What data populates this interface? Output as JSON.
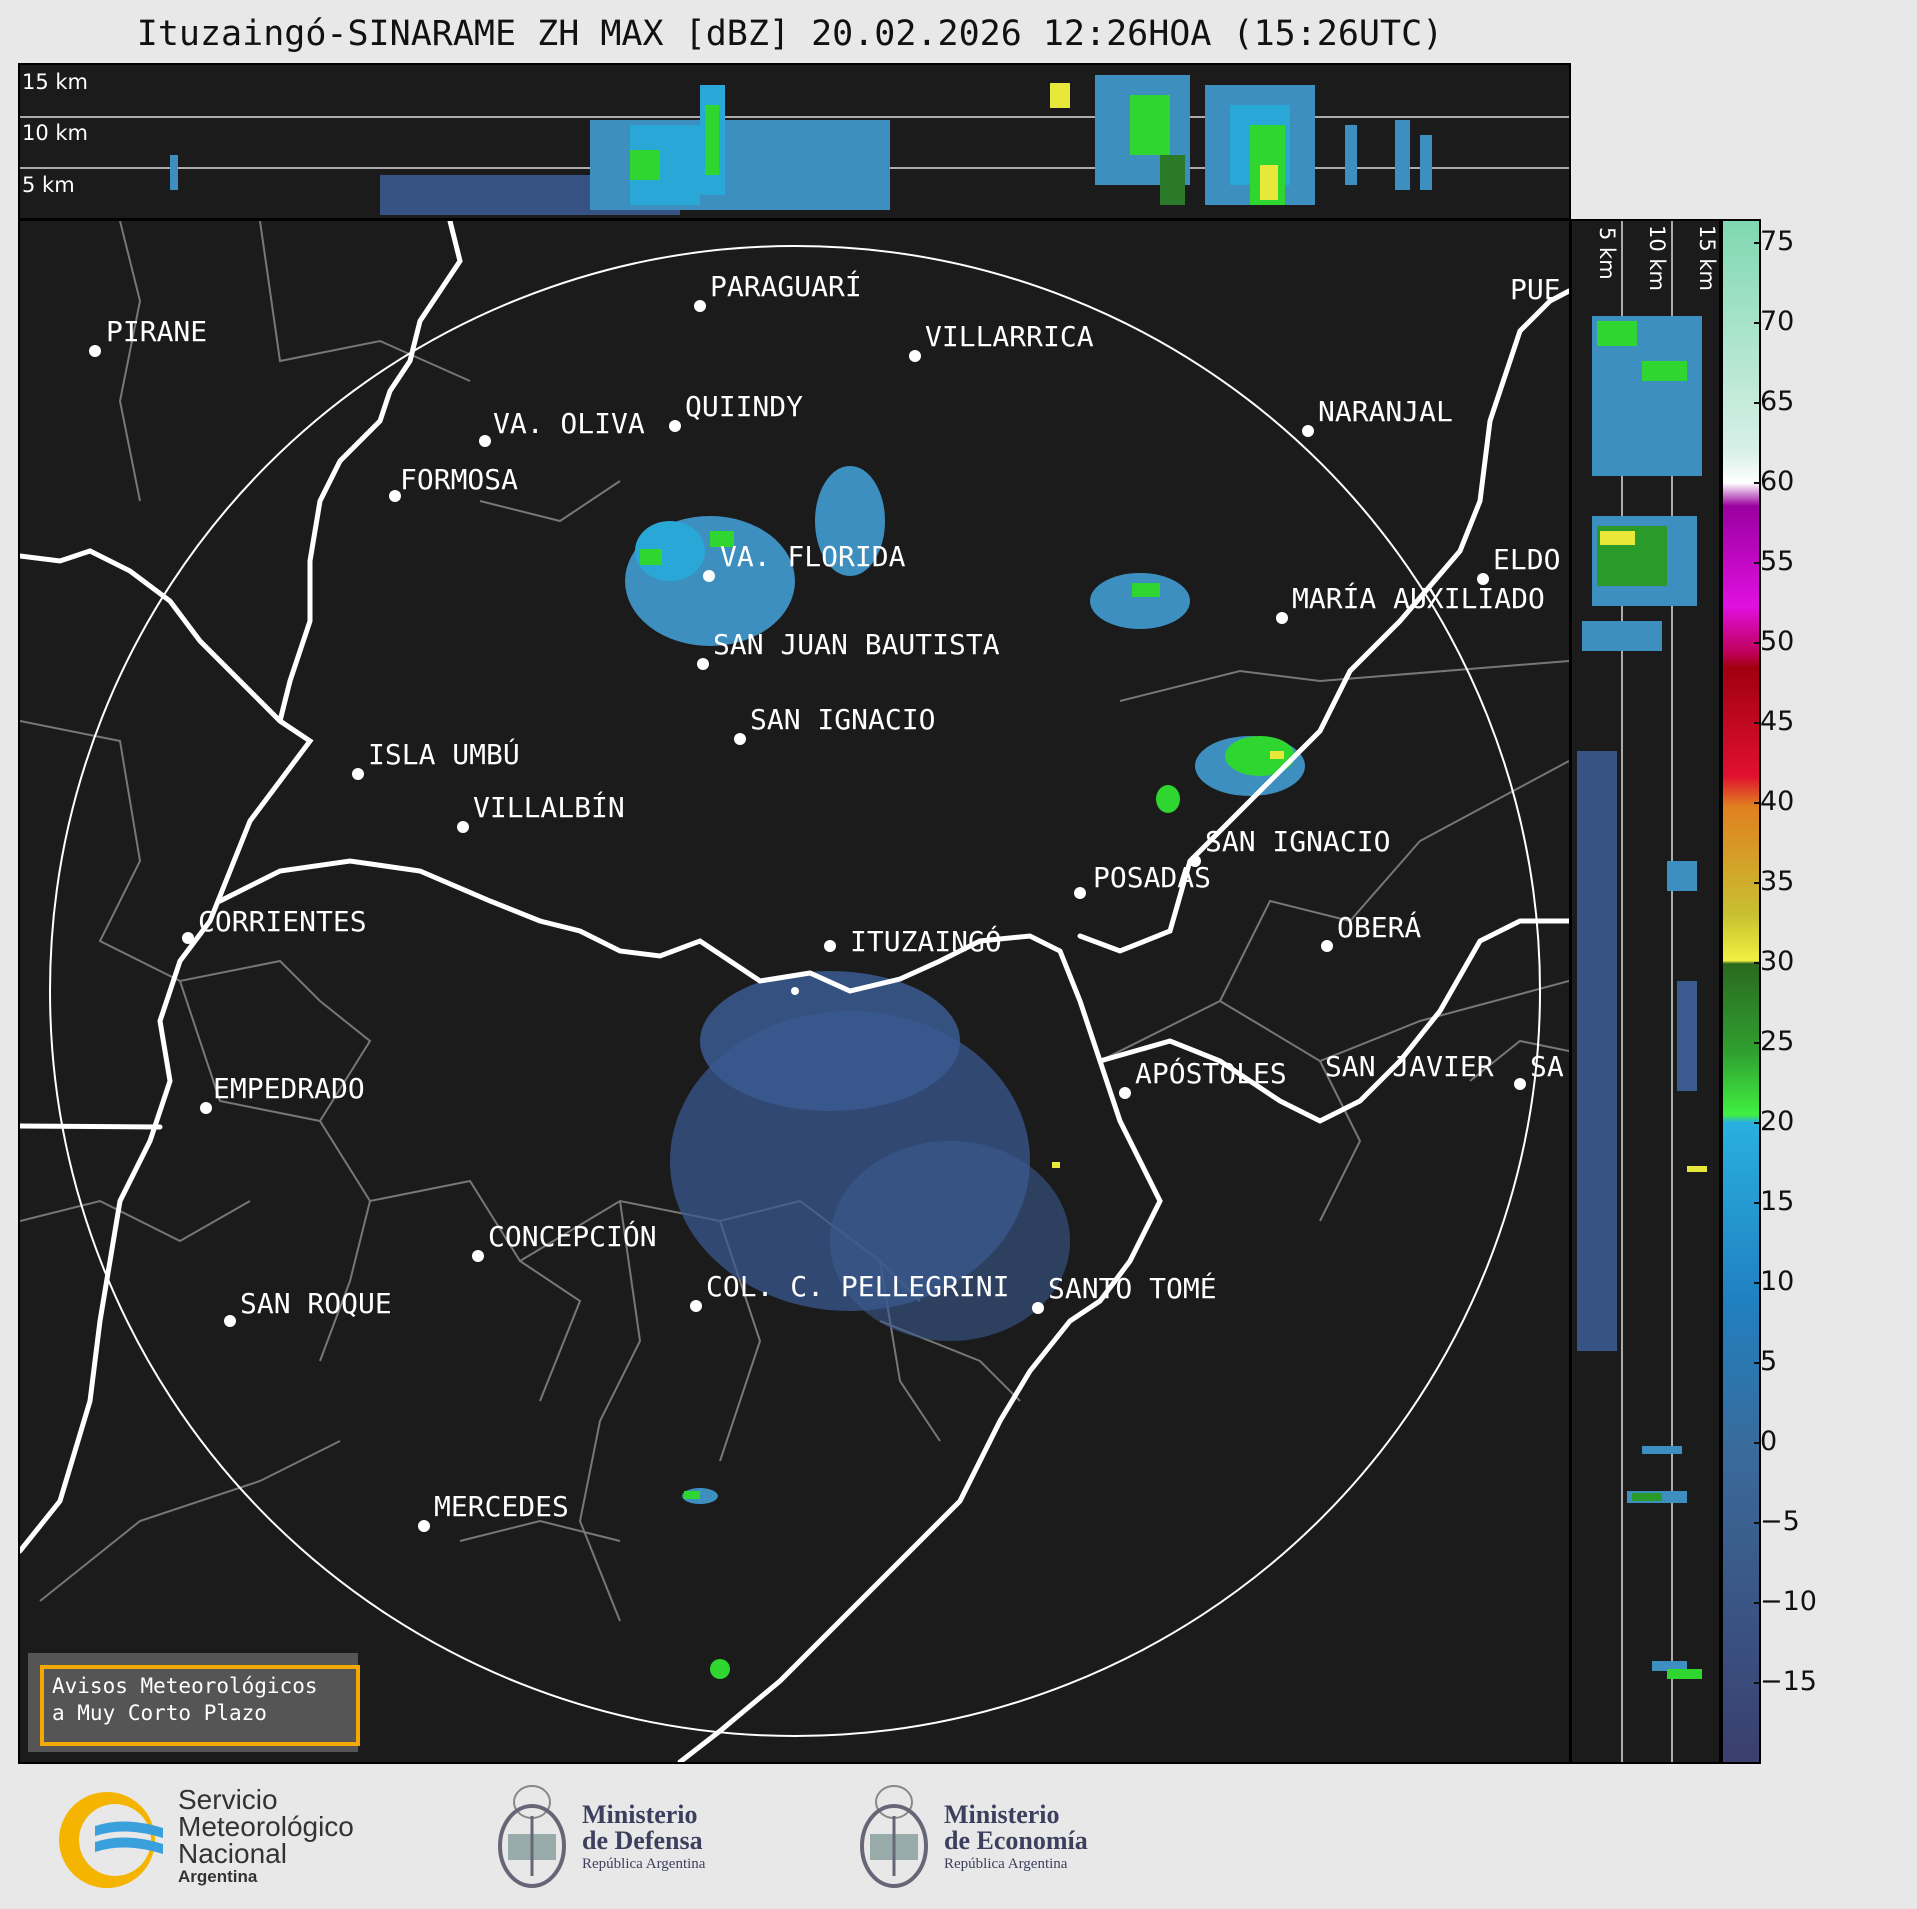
{
  "title": "Ituzaingó-SINARAME ZH MAX [dBZ] 20.02.2026 12:26HOA (15:26UTC)",
  "top_profile": {
    "heights": [
      "15 km",
      "10 km",
      "5 km"
    ]
  },
  "side_profile": {
    "heights": [
      "5 km",
      "10 km",
      "15 km"
    ]
  },
  "cities": [
    {
      "name": "PARAGUARÍ"
    },
    {
      "name": "PIRANE"
    },
    {
      "name": "VILLARRICA"
    },
    {
      "name": "PUE"
    },
    {
      "name": "QUIINDY"
    },
    {
      "name": "VA. OLIVA"
    },
    {
      "name": "NARANJAL"
    },
    {
      "name": "FORMOSA"
    },
    {
      "name": "VA. FLORIDA"
    },
    {
      "name": "ELDO"
    },
    {
      "name": "MARÍA AUXILIADO"
    },
    {
      "name": "SAN JUAN BAUTISTA"
    },
    {
      "name": "SAN IGNACIO"
    },
    {
      "name": "ISLA UMBÚ"
    },
    {
      "name": "VILLALBÍN"
    },
    {
      "name": "SAN IGNACIO"
    },
    {
      "name": "POSADAS"
    },
    {
      "name": "CORRIENTES"
    },
    {
      "name": "ITUZAINGÓ"
    },
    {
      "name": "OBERÁ"
    },
    {
      "name": "EMPEDRADO"
    },
    {
      "name": "APÓSTOLES"
    },
    {
      "name": "SAN JAVIER"
    },
    {
      "name": "SA"
    },
    {
      "name": "CONCEPCIÓN"
    },
    {
      "name": "COL. C. PELLEGRINI"
    },
    {
      "name": "SANTO TOMÉ"
    },
    {
      "name": "SAN ROQUE"
    },
    {
      "name": "MERCEDES"
    }
  ],
  "colorbar": {
    "ticks": [
      "75",
      "70",
      "65",
      "60",
      "55",
      "50",
      "45",
      "40",
      "35",
      "30",
      "25",
      "20",
      "15",
      "10",
      "5",
      "0",
      "−5",
      "−10",
      "−15"
    ],
    "colors": {
      "low": "#3a3f6e",
      "mid_blue": "#3d6fa0",
      "cyan": "#29a8d8",
      "green": "#2fd62f",
      "yellow": "#e8e83a",
      "orange": "#e08020",
      "red": "#d0102a",
      "magenta": "#e010e0",
      "white": "#ffffff",
      "mint": "#8fe0c0"
    }
  },
  "notice": {
    "line1": "Avisos Meteorológicos",
    "line2": "a Muy Corto Plazo"
  },
  "footer": {
    "smn_1": "Servicio",
    "smn_2": "Meteorológico",
    "smn_3": "Nacional",
    "smn_4": "Argentina",
    "def_1": "Ministerio",
    "def_2": "de Defensa",
    "def_3": "República Argentina",
    "eco_1": "Ministerio",
    "eco_2": "de Economía",
    "eco_3": "República Argentina"
  }
}
